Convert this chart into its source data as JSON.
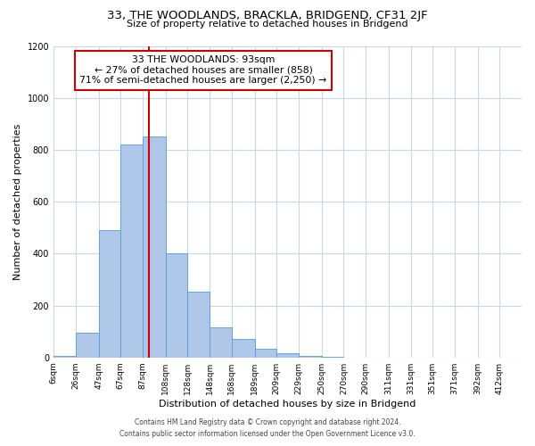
{
  "title": "33, THE WOODLANDS, BRACKLA, BRIDGEND, CF31 2JF",
  "subtitle": "Size of property relative to detached houses in Bridgend",
  "xlabel": "Distribution of detached houses by size in Bridgend",
  "ylabel": "Number of detached properties",
  "bar_color": "#aec6e8",
  "bar_edgecolor": "#5b9bd5",
  "background_color": "#ffffff",
  "grid_color": "#c8d8e8",
  "annotation_box_edgecolor": "#cc0000",
  "annotation_line_color": "#cc0000",
  "annotation_text_line1": "33 THE WOODLANDS: 93sqm",
  "annotation_text_line2": "← 27% of detached houses are smaller (858)",
  "annotation_text_line3": "71% of semi-detached houses are larger (2,250) →",
  "property_line_x": 93,
  "categories": [
    "6sqm",
    "26sqm",
    "47sqm",
    "67sqm",
    "87sqm",
    "108sqm",
    "128sqm",
    "148sqm",
    "168sqm",
    "189sqm",
    "209sqm",
    "229sqm",
    "250sqm",
    "270sqm",
    "290sqm",
    "311sqm",
    "331sqm",
    "351sqm",
    "371sqm",
    "392sqm",
    "412sqm"
  ],
  "bin_edges": [
    6,
    26,
    47,
    67,
    87,
    108,
    128,
    148,
    168,
    189,
    209,
    229,
    250,
    270,
    290,
    311,
    331,
    351,
    371,
    392,
    412
  ],
  "bar_heights": [
    5,
    95,
    490,
    820,
    850,
    400,
    255,
    115,
    70,
    35,
    15,
    5,
    2,
    0,
    0,
    0,
    0,
    0,
    0,
    0
  ],
  "ylim": [
    0,
    1200
  ],
  "yticks": [
    0,
    200,
    400,
    600,
    800,
    1000,
    1200
  ],
  "xlim_min": 6,
  "xlim_max": 432,
  "footer_line1": "Contains HM Land Registry data © Crown copyright and database right 2024.",
  "footer_line2": "Contains public sector information licensed under the Open Government Licence v3.0.",
  "title_fontsize": 9.5,
  "subtitle_fontsize": 8,
  "axis_label_fontsize": 8,
  "tick_fontsize": 6.5,
  "footer_fontsize": 5.5,
  "annotation_fontsize": 7.8
}
